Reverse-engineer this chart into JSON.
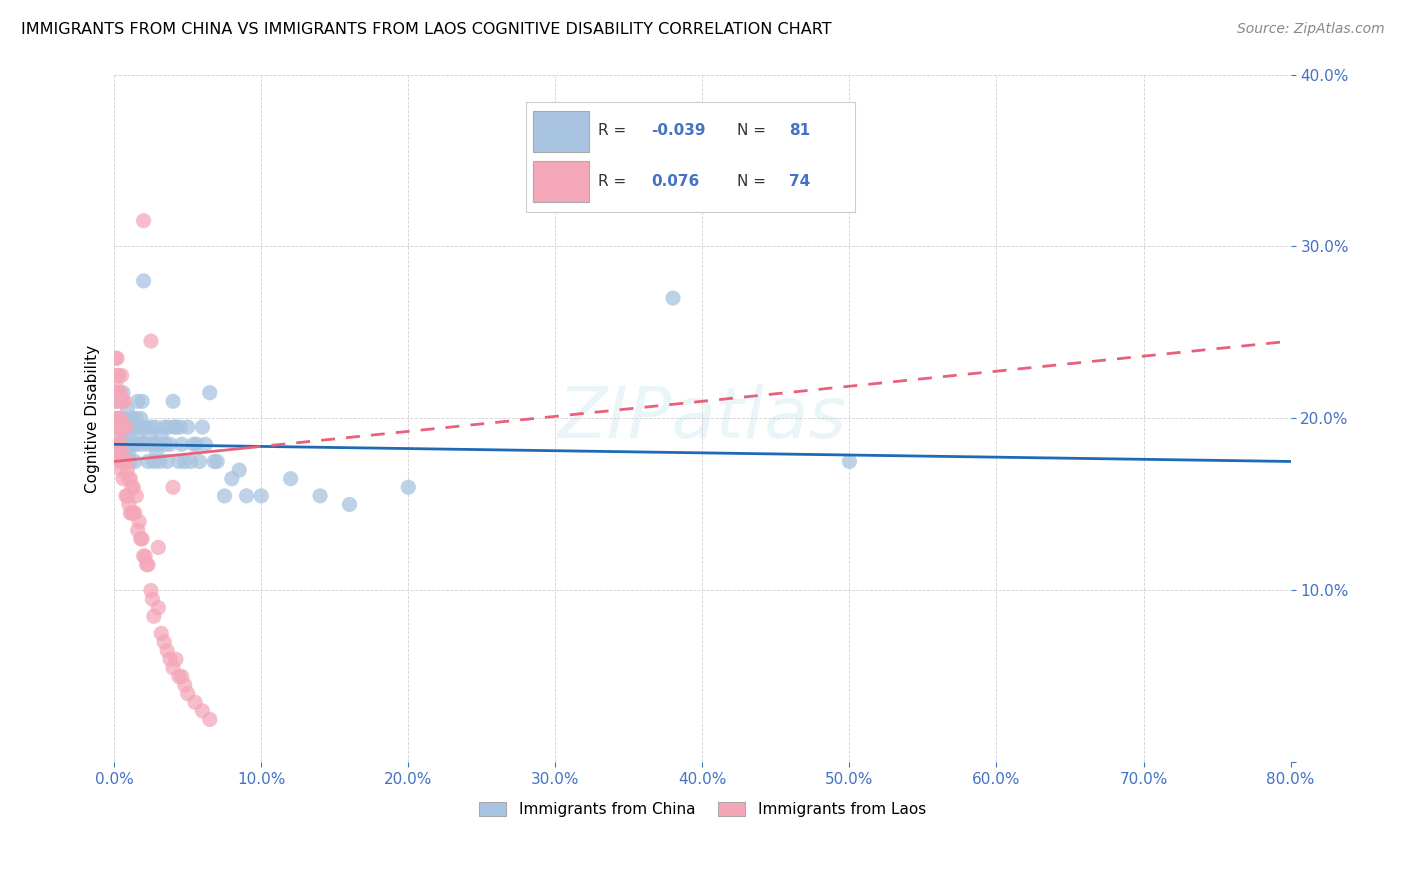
{
  "title": "IMMIGRANTS FROM CHINA VS IMMIGRANTS FROM LAOS COGNITIVE DISABILITY CORRELATION CHART",
  "source": "Source: ZipAtlas.com",
  "ylabel": "Cognitive Disability",
  "xlim": [
    0.0,
    0.8
  ],
  "ylim": [
    0.0,
    0.4
  ],
  "xticks": [
    0.0,
    0.1,
    0.2,
    0.3,
    0.4,
    0.5,
    0.6,
    0.7,
    0.8
  ],
  "yticks": [
    0.0,
    0.1,
    0.2,
    0.3,
    0.4
  ],
  "china_color": "#a8c4e0",
  "laos_color": "#f4a7b9",
  "china_line_color": "#1f6ab5",
  "laos_line_color": "#e8607a",
  "legend_labels": [
    "Immigrants from China",
    "Immigrants from Laos"
  ],
  "china_x": [
    0.001,
    0.002,
    0.002,
    0.003,
    0.003,
    0.004,
    0.004,
    0.005,
    0.005,
    0.006,
    0.006,
    0.006,
    0.007,
    0.007,
    0.008,
    0.008,
    0.009,
    0.009,
    0.01,
    0.01,
    0.011,
    0.011,
    0.012,
    0.012,
    0.013,
    0.014,
    0.014,
    0.015,
    0.015,
    0.016,
    0.016,
    0.017,
    0.018,
    0.018,
    0.019,
    0.02,
    0.021,
    0.022,
    0.023,
    0.024,
    0.025,
    0.026,
    0.027,
    0.028,
    0.029,
    0.03,
    0.031,
    0.032,
    0.034,
    0.035,
    0.036,
    0.037,
    0.038,
    0.04,
    0.041,
    0.042,
    0.044,
    0.045,
    0.046,
    0.048,
    0.05,
    0.052,
    0.054,
    0.056,
    0.058,
    0.06,
    0.062,
    0.065,
    0.068,
    0.07,
    0.075,
    0.08,
    0.085,
    0.09,
    0.1,
    0.12,
    0.14,
    0.16,
    0.2,
    0.38,
    0.5
  ],
  "china_y": [
    0.18,
    0.21,
    0.195,
    0.185,
    0.2,
    0.175,
    0.195,
    0.185,
    0.2,
    0.19,
    0.175,
    0.215,
    0.185,
    0.2,
    0.18,
    0.195,
    0.175,
    0.205,
    0.18,
    0.19,
    0.175,
    0.185,
    0.2,
    0.195,
    0.185,
    0.175,
    0.195,
    0.185,
    0.2,
    0.19,
    0.21,
    0.195,
    0.185,
    0.2,
    0.21,
    0.28,
    0.195,
    0.185,
    0.175,
    0.19,
    0.195,
    0.185,
    0.175,
    0.195,
    0.18,
    0.185,
    0.175,
    0.19,
    0.195,
    0.185,
    0.175,
    0.195,
    0.185,
    0.21,
    0.195,
    0.195,
    0.175,
    0.195,
    0.185,
    0.175,
    0.195,
    0.175,
    0.185,
    0.185,
    0.175,
    0.195,
    0.185,
    0.215,
    0.175,
    0.175,
    0.155,
    0.165,
    0.17,
    0.155,
    0.155,
    0.165,
    0.155,
    0.15,
    0.16,
    0.27,
    0.175
  ],
  "laos_x": [
    0.001,
    0.001,
    0.001,
    0.001,
    0.002,
    0.002,
    0.002,
    0.002,
    0.002,
    0.003,
    0.003,
    0.003,
    0.003,
    0.003,
    0.004,
    0.004,
    0.004,
    0.004,
    0.005,
    0.005,
    0.005,
    0.005,
    0.005,
    0.006,
    0.006,
    0.006,
    0.006,
    0.007,
    0.007,
    0.007,
    0.008,
    0.008,
    0.008,
    0.009,
    0.009,
    0.01,
    0.01,
    0.011,
    0.011,
    0.012,
    0.012,
    0.013,
    0.013,
    0.014,
    0.015,
    0.016,
    0.017,
    0.018,
    0.019,
    0.02,
    0.021,
    0.022,
    0.023,
    0.025,
    0.026,
    0.027,
    0.03,
    0.032,
    0.034,
    0.036,
    0.038,
    0.04,
    0.042,
    0.044,
    0.046,
    0.048,
    0.05,
    0.055,
    0.06,
    0.065,
    0.02,
    0.025,
    0.03,
    0.04
  ],
  "laos_y": [
    0.2,
    0.21,
    0.22,
    0.235,
    0.185,
    0.195,
    0.215,
    0.225,
    0.235,
    0.18,
    0.19,
    0.2,
    0.215,
    0.225,
    0.175,
    0.185,
    0.2,
    0.215,
    0.17,
    0.18,
    0.195,
    0.21,
    0.225,
    0.165,
    0.175,
    0.195,
    0.21,
    0.175,
    0.195,
    0.21,
    0.155,
    0.175,
    0.195,
    0.155,
    0.17,
    0.15,
    0.165,
    0.145,
    0.165,
    0.145,
    0.16,
    0.145,
    0.16,
    0.145,
    0.155,
    0.135,
    0.14,
    0.13,
    0.13,
    0.12,
    0.12,
    0.115,
    0.115,
    0.1,
    0.095,
    0.085,
    0.09,
    0.075,
    0.07,
    0.065,
    0.06,
    0.055,
    0.06,
    0.05,
    0.05,
    0.045,
    0.04,
    0.035,
    0.03,
    0.025,
    0.315,
    0.245,
    0.125,
    0.16
  ]
}
